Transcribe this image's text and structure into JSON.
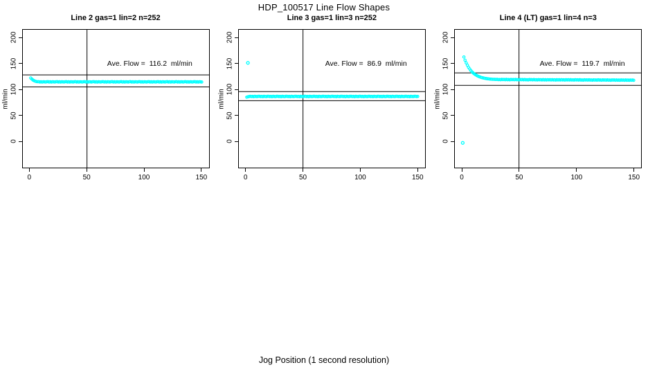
{
  "figure": {
    "title": "HDP_100517  Line Flow Shapes",
    "xlabel": "Jog Position (1 second resolution)"
  },
  "colors": {
    "points": "#00FFFF",
    "axis": "#000000",
    "background": "#FFFFFF"
  },
  "chart_data": [
    {
      "id": "line-2",
      "type": "scatter",
      "title": "Line 2 gas=1 lin=2 n=252",
      "gas": 1,
      "lin": 2,
      "n": 252,
      "annotation": "Ave. Flow =  116.2  ml/min",
      "ave_flow_ml_min": 116.2,
      "ylabel": "ml/min",
      "x_ticks": [
        0,
        50,
        100,
        150
      ],
      "y_ticks": [
        0,
        50,
        100,
        150,
        200
      ],
      "xlim": [
        -6.5,
        157
      ],
      "ylim": [
        -52,
        216
      ],
      "grid": false,
      "vline_x": 50,
      "hlines": [
        127.8,
        104.6
      ],
      "annotation_pos": {
        "x": 105,
        "y": 150
      },
      "series": {
        "x_start": 1,
        "x_step": 1,
        "y": [
          121.8,
          119.7,
          117.9,
          116.5,
          115.6,
          115.0,
          114.7,
          114.8,
          114.2,
          114.5,
          114.0,
          114.7,
          114.4,
          114.1,
          114.6,
          114.8,
          114.2,
          114.5,
          114.0,
          114.7,
          114.4,
          114.1,
          114.6,
          114.8,
          114.2,
          114.5,
          114.0,
          114.7,
          114.4,
          114.1,
          114.6,
          114.8,
          114.2,
          114.5,
          114.0,
          114.7,
          114.4,
          114.1,
          114.6,
          114.8,
          114.2,
          114.5,
          114.0,
          114.7,
          114.4,
          114.1,
          114.6,
          114.8,
          114.2,
          114.5,
          114.0,
          114.7,
          114.4,
          114.1,
          114.6,
          114.8,
          114.2,
          114.5,
          114.0,
          114.7,
          114.4,
          114.1,
          114.6,
          114.8,
          114.2,
          114.5,
          114.0,
          114.7,
          114.4,
          114.1,
          114.6,
          114.8,
          114.2,
          114.5,
          114.0,
          114.7,
          114.4,
          114.1,
          114.6,
          114.8,
          114.2,
          114.5,
          114.0,
          114.7,
          114.4,
          114.1,
          114.6,
          114.8,
          114.2,
          114.5,
          114.0,
          114.7,
          114.4,
          114.1,
          114.6,
          114.8,
          114.2,
          114.5,
          114.0,
          114.7,
          114.4,
          114.1,
          114.6,
          114.8,
          114.2,
          114.5,
          114.0,
          114.7,
          114.4,
          114.1,
          114.6,
          114.8,
          114.2,
          114.5,
          114.0,
          114.7,
          114.4,
          114.1,
          114.6,
          114.8,
          114.2,
          114.5,
          114.0,
          114.7,
          114.4,
          114.1,
          114.6,
          114.8,
          114.2,
          114.5,
          114.0,
          114.7,
          114.4,
          114.1,
          114.6,
          114.8,
          114.2,
          114.5,
          114.0,
          114.7,
          114.4,
          114.1,
          114.6,
          114.8,
          114.2,
          114.5,
          114.0,
          114.7,
          114.4,
          114.1
        ]
      },
      "outliers": []
    },
    {
      "id": "line-3",
      "type": "scatter",
      "title": "Line 3 gas=1 lin=3 n=252",
      "gas": 1,
      "lin": 3,
      "n": 252,
      "annotation": "Ave. Flow =  86.9  ml/min",
      "ave_flow_ml_min": 86.9,
      "ylabel": "ml/min",
      "x_ticks": [
        0,
        50,
        100,
        150
      ],
      "y_ticks": [
        0,
        50,
        100,
        150,
        200
      ],
      "xlim": [
        -6.5,
        157
      ],
      "ylim": [
        -52,
        216
      ],
      "grid": false,
      "vline_x": 50,
      "hlines": [
        95.6,
        78.2
      ],
      "annotation_pos": {
        "x": 105,
        "y": 150
      },
      "series": {
        "x_start": 1,
        "x_step": 1,
        "y": [
          85.0,
          85.6,
          86.1,
          86.7,
          86.1,
          86.4,
          85.9,
          86.6,
          86.3,
          86.0,
          86.5,
          86.7,
          86.1,
          86.4,
          85.9,
          86.6,
          86.3,
          86.0,
          86.5,
          86.7,
          86.1,
          86.4,
          85.9,
          86.6,
          86.3,
          86.0,
          86.5,
          86.7,
          86.1,
          86.4,
          85.9,
          86.6,
          86.3,
          86.0,
          86.5,
          86.7,
          86.1,
          86.4,
          85.9,
          86.6,
          86.3,
          86.0,
          86.5,
          86.7,
          86.1,
          86.4,
          85.9,
          86.6,
          86.3,
          86.0,
          86.5,
          86.7,
          86.1,
          86.4,
          85.9,
          86.6,
          86.3,
          86.0,
          86.5,
          86.7,
          86.1,
          86.4,
          85.9,
          86.6,
          86.3,
          86.0,
          86.5,
          86.7,
          86.1,
          86.4,
          85.9,
          86.6,
          86.3,
          86.0,
          86.5,
          86.7,
          86.1,
          86.4,
          85.9,
          86.6,
          86.3,
          86.0,
          86.5,
          86.7,
          86.1,
          86.4,
          85.9,
          86.6,
          86.3,
          86.0,
          86.5,
          86.7,
          86.1,
          86.4,
          85.9,
          86.6,
          86.3,
          86.0,
          86.5,
          86.7,
          86.1,
          86.4,
          85.9,
          86.6,
          86.3,
          86.0,
          86.5,
          86.7,
          86.1,
          86.4,
          85.9,
          86.6,
          86.3,
          86.0,
          86.5,
          86.7,
          86.1,
          86.4,
          85.9,
          86.6,
          86.3,
          86.0,
          86.5,
          86.7,
          86.1,
          86.4,
          85.9,
          86.6,
          86.3,
          86.0,
          86.5,
          86.7,
          86.1,
          86.4,
          85.9,
          86.6,
          86.3,
          86.0,
          86.5,
          86.7,
          86.1,
          86.4,
          85.9,
          86.6,
          86.3,
          86.0,
          86.5,
          86.7,
          86.1,
          86.4
        ]
      },
      "outliers": [
        [
          2,
          151
        ]
      ]
    },
    {
      "id": "line-4",
      "type": "scatter",
      "title": "Line 4 (LT) gas=1 lin=4 n=3",
      "gas": 1,
      "lin": 4,
      "n": 3,
      "annotation": "Ave. Flow =  119.7  ml/min",
      "ave_flow_ml_min": 119.7,
      "ylabel": "ml/min",
      "x_ticks": [
        0,
        50,
        100,
        150
      ],
      "y_ticks": [
        0,
        50,
        100,
        150,
        200
      ],
      "xlim": [
        -6.5,
        157
      ],
      "ylim": [
        -52,
        216
      ],
      "grid": false,
      "vline_x": 50,
      "hlines": [
        131.7,
        107.7
      ],
      "annotation_pos": {
        "x": 105,
        "y": 150
      },
      "series": {
        "x_start": 2,
        "x_step": 1,
        "y": [
          162.2,
          156.2,
          151.0,
          146.5,
          142.6,
          139.3,
          136.4,
          133.9,
          131.7,
          129.9,
          128.3,
          126.9,
          125.7,
          124.7,
          123.8,
          123.0,
          122.4,
          121.8,
          121.3,
          120.9,
          120.6,
          120.3,
          120.0,
          119.8,
          119.6,
          119.4,
          119.3,
          119.2,
          119.1,
          119.3,
          118.7,
          119.0,
          118.5,
          119.2,
          118.8,
          119.1,
          118.6,
          119.2,
          118.6,
          118.9,
          118.4,
          119.1,
          118.7,
          119.0,
          118.5,
          119.1,
          118.5,
          118.8,
          118.3,
          119.0,
          118.6,
          118.9,
          118.4,
          119.0,
          118.4,
          118.7,
          118.2,
          118.9,
          118.5,
          118.8,
          118.3,
          118.9,
          118.3,
          118.6,
          118.1,
          118.8,
          118.4,
          118.7,
          118.2,
          118.8,
          118.2,
          118.5,
          118.0,
          118.7,
          118.3,
          118.6,
          118.1,
          118.7,
          118.1,
          118.4,
          117.9,
          118.6,
          118.2,
          118.5,
          118.0,
          118.7,
          118.1,
          118.4,
          117.9,
          118.6,
          118.2,
          118.5,
          118.0,
          118.6,
          118.0,
          118.3,
          117.8,
          118.5,
          118.1,
          118.4,
          117.9,
          118.5,
          117.9,
          118.2,
          117.7,
          118.4,
          118.0,
          118.3,
          117.8,
          118.4,
          117.8,
          118.1,
          117.6,
          118.3,
          117.9,
          118.2,
          117.7,
          118.4,
          117.8,
          118.1,
          117.6,
          118.3,
          117.9,
          118.2,
          117.7,
          118.3,
          117.7,
          118.0,
          117.5,
          118.2,
          117.8,
          118.1,
          117.6,
          118.2,
          117.6,
          117.9,
          117.4,
          118.1,
          117.7,
          118.0,
          117.5,
          118.1,
          117.5,
          117.8,
          117.3,
          118.0,
          117.6,
          117.9,
          117.4
        ]
      },
      "outliers": [
        [
          1,
          -3
        ]
      ]
    }
  ]
}
